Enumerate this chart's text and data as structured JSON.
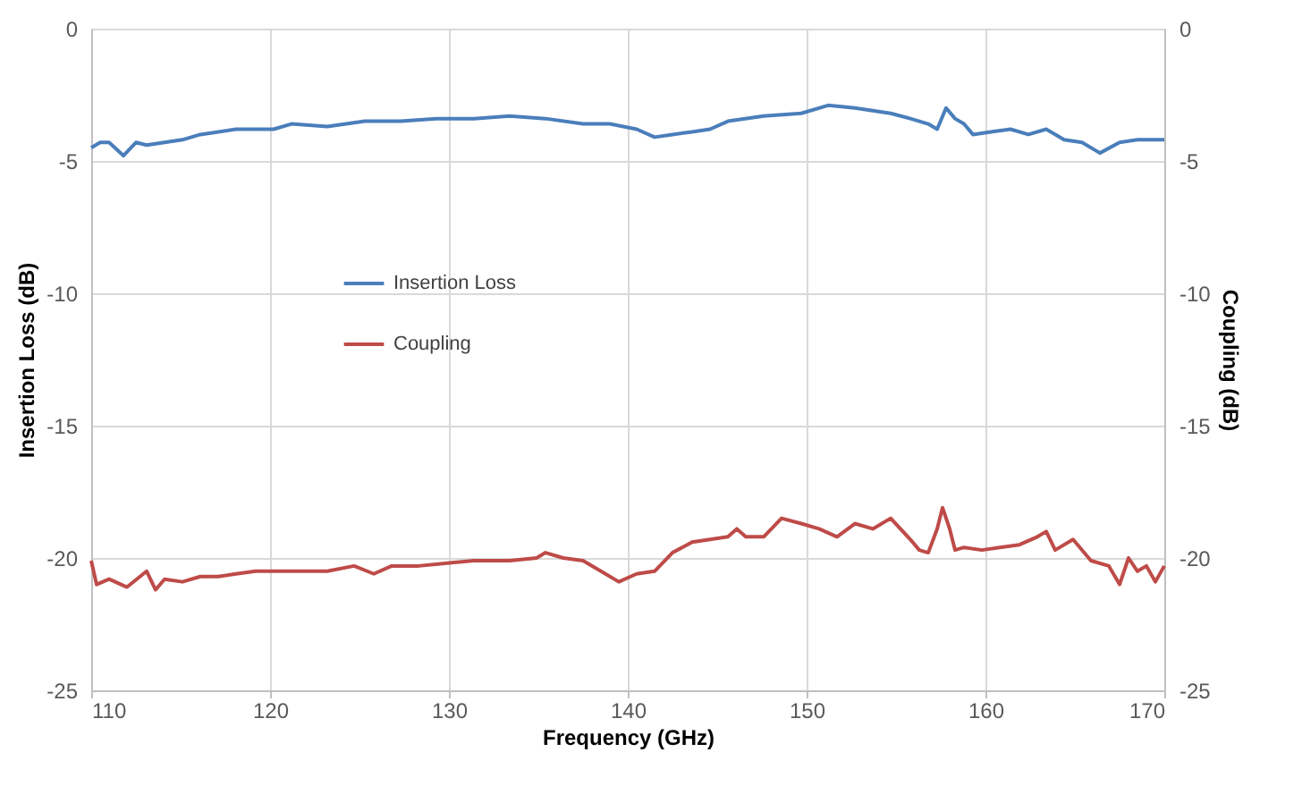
{
  "chart_data": {
    "type": "line",
    "xlabel": "Frequency (GHz)",
    "ylabel": "Insertion Loss (dB)",
    "y2label": "Coupling (dB)",
    "xlim": [
      110,
      170
    ],
    "xticks": [
      110,
      120,
      130,
      140,
      150,
      160,
      170
    ],
    "ylim": [
      -25,
      0
    ],
    "yticks": [
      -25,
      -20,
      -15,
      -10,
      -5,
      0
    ],
    "y2lim": [
      -25,
      0
    ],
    "y2ticks": [
      -25,
      -20,
      -15,
      -10,
      -5,
      0
    ],
    "grid": true,
    "legend": "left",
    "marker": "none",
    "line_style": "solid",
    "series": [
      {
        "name": "Insertion Loss",
        "color": "#4a7ebb",
        "x": [
          110.0,
          110.5,
          111.0,
          111.8,
          112.5,
          113.1,
          114.1,
          115.1,
          116.1,
          118.1,
          120.2,
          121.2,
          123.2,
          125.3,
          127.3,
          129.3,
          131.4,
          133.4,
          135.4,
          137.5,
          139.0,
          140.5,
          141.5,
          142.5,
          143.6,
          144.6,
          145.6,
          147.6,
          149.7,
          151.2,
          152.7,
          153.7,
          154.7,
          155.8,
          156.8,
          157.3,
          157.8,
          158.3,
          158.8,
          159.3,
          160.3,
          161.4,
          162.4,
          163.4,
          164.4,
          165.4,
          166.4,
          167.5,
          168.5,
          170.0
        ],
        "values": [
          -4.5,
          -4.3,
          -4.3,
          -4.8,
          -4.3,
          -4.4,
          -4.3,
          -4.2,
          -4.0,
          -3.8,
          -3.8,
          -3.6,
          -3.7,
          -3.5,
          -3.5,
          -3.4,
          -3.4,
          -3.3,
          -3.4,
          -3.6,
          -3.6,
          -3.8,
          -4.1,
          -4.0,
          -3.9,
          -3.8,
          -3.5,
          -3.3,
          -3.2,
          -2.9,
          -3.0,
          -3.1,
          -3.2,
          -3.4,
          -3.6,
          -3.8,
          -3.0,
          -3.4,
          -3.6,
          -4.0,
          -3.9,
          -3.8,
          -4.0,
          -3.8,
          -4.2,
          -4.3,
          -4.7,
          -4.3,
          -4.2,
          -4.2
        ]
      },
      {
        "name": "Coupling",
        "color": "#be4b48",
        "axis": "y2",
        "x": [
          110.0,
          110.3,
          111.0,
          112.0,
          113.1,
          113.6,
          114.1,
          115.1,
          116.1,
          117.1,
          118.1,
          119.2,
          120.2,
          121.7,
          123.2,
          124.7,
          125.8,
          126.8,
          128.3,
          129.8,
          131.4,
          133.4,
          134.9,
          135.4,
          136.4,
          137.5,
          138.5,
          139.5,
          140.5,
          141.5,
          142.5,
          143.6,
          144.6,
          145.6,
          146.1,
          146.6,
          147.6,
          148.6,
          149.7,
          150.7,
          151.7,
          152.7,
          153.7,
          154.7,
          155.8,
          156.3,
          156.8,
          157.3,
          157.6,
          158.0,
          158.3,
          158.8,
          159.8,
          160.8,
          161.9,
          162.9,
          163.4,
          163.9,
          164.9,
          165.9,
          166.9,
          167.5,
          168.0,
          168.5,
          169.0,
          169.5,
          170.0
        ],
        "values": [
          -20.1,
          -21.0,
          -20.8,
          -21.1,
          -20.5,
          -21.2,
          -20.8,
          -20.9,
          -20.7,
          -20.7,
          -20.6,
          -20.5,
          -20.5,
          -20.5,
          -20.5,
          -20.3,
          -20.6,
          -20.3,
          -20.3,
          -20.2,
          -20.1,
          -20.1,
          -20.0,
          -19.8,
          -20.0,
          -20.1,
          -20.5,
          -20.9,
          -20.6,
          -20.5,
          -19.8,
          -19.4,
          -19.3,
          -19.2,
          -18.9,
          -19.2,
          -19.2,
          -18.5,
          -18.7,
          -18.9,
          -19.2,
          -18.7,
          -18.9,
          -18.5,
          -19.3,
          -19.7,
          -19.8,
          -18.9,
          -18.1,
          -18.9,
          -19.7,
          -19.6,
          -19.7,
          -19.6,
          -19.5,
          -19.2,
          -19.0,
          -19.7,
          -19.3,
          -20.1,
          -20.3,
          -21.0,
          -20.0,
          -20.5,
          -20.3,
          -20.9,
          -20.3
        ]
      }
    ]
  }
}
